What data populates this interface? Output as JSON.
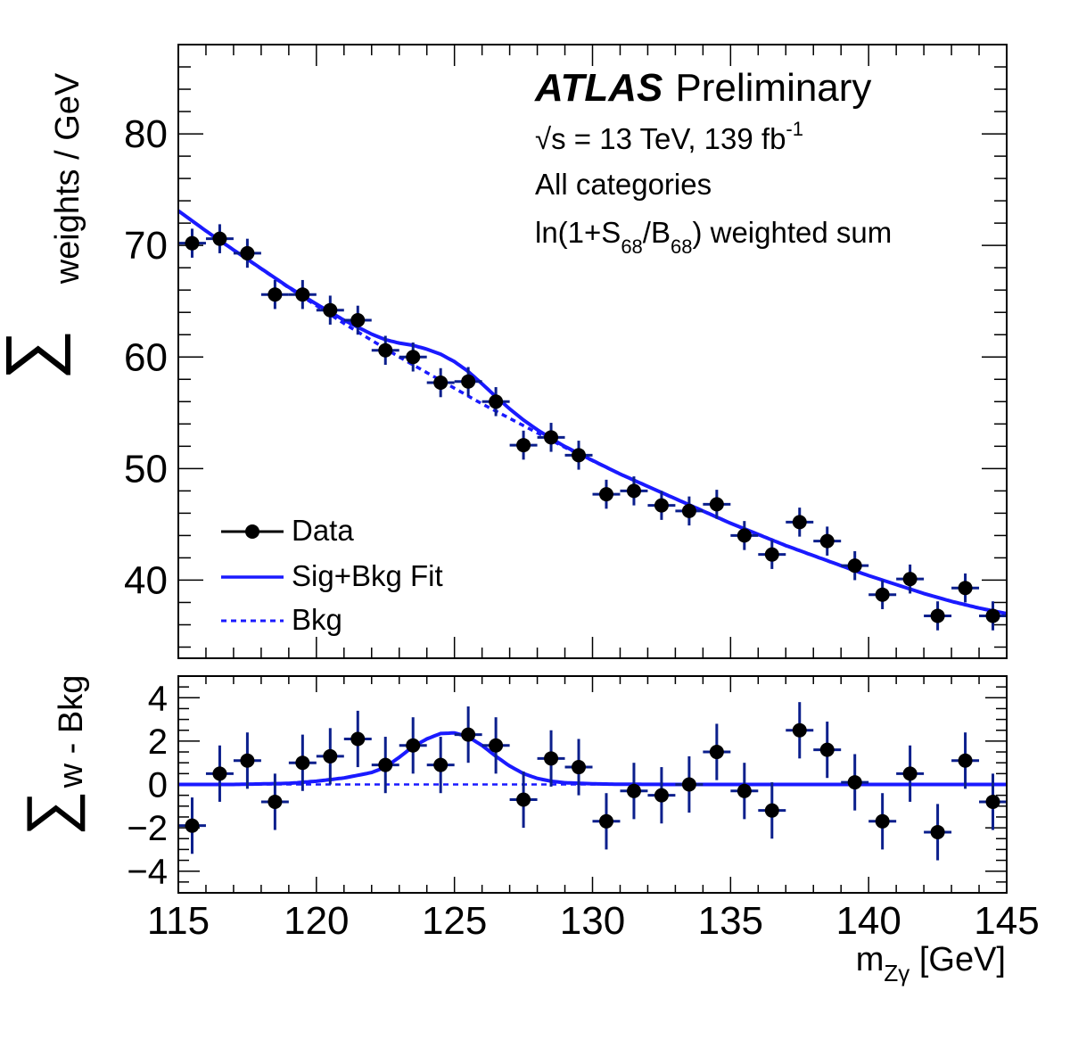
{
  "chart_data": [
    {
      "type": "scatter",
      "panel": "main",
      "experiment": "ATLAS",
      "status": "Preliminary",
      "energy_prefix": "√s = 13 TeV, 139 fb",
      "energy_sup": "-1",
      "category": "All categories",
      "weight_prefix": "ln(1+S",
      "weight_sub1": "68",
      "weight_mid": "/B",
      "weight_sub2": "68",
      "weight_suffix": ") weighted sum",
      "ylabel_sum": "∑",
      "ylabel": "weights / GeV",
      "xlim": [
        115,
        145
      ],
      "ylim": [
        33,
        88
      ],
      "yticks": [
        40,
        50,
        60,
        70,
        80
      ],
      "legend": [
        "Data",
        "Sig+Bkg Fit",
        "Bkg"
      ],
      "legend_position": "bottom-left",
      "bin_width": 1.0,
      "x": [
        115.5,
        116.5,
        117.5,
        118.5,
        119.5,
        120.5,
        121.5,
        122.5,
        123.5,
        124.5,
        125.5,
        126.5,
        127.5,
        128.5,
        129.5,
        130.5,
        131.5,
        132.5,
        133.5,
        134.5,
        135.5,
        136.5,
        137.5,
        138.5,
        139.5,
        140.5,
        141.5,
        142.5,
        143.5,
        144.5
      ],
      "y": [
        70.2,
        70.6,
        69.3,
        65.6,
        65.6,
        64.2,
        63.3,
        60.6,
        60.0,
        57.7,
        57.8,
        56.0,
        52.1,
        52.8,
        51.2,
        47.7,
        48.0,
        46.7,
        46.2,
        46.8,
        44.0,
        42.3,
        45.2,
        43.5,
        41.3,
        38.7,
        40.1,
        36.8,
        39.3,
        36.8
      ],
      "yerr": [
        1.3,
        1.3,
        1.3,
        1.3,
        1.3,
        1.3,
        1.3,
        1.3,
        1.3,
        1.3,
        1.3,
        1.3,
        1.3,
        1.3,
        1.3,
        1.3,
        1.3,
        1.3,
        1.3,
        1.3,
        1.3,
        1.3,
        1.3,
        1.3,
        1.3,
        1.3,
        1.3,
        1.3,
        1.3,
        1.3
      ],
      "bkg_curve": {
        "x": [
          115,
          116,
          117,
          118,
          119,
          120,
          121,
          122,
          123,
          124,
          125,
          126,
          127,
          128,
          129,
          130,
          131,
          132,
          133,
          134,
          135,
          136,
          137,
          138,
          139,
          140,
          141,
          142,
          143,
          144,
          145
        ],
        "y": [
          73.1,
          71.3,
          69.6,
          67.9,
          66.2,
          64.6,
          63.0,
          61.5,
          60.0,
          58.6,
          57.2,
          55.8,
          54.5,
          53.2,
          51.9,
          50.7,
          49.5,
          48.4,
          47.3,
          46.2,
          45.1,
          44.1,
          43.1,
          42.2,
          41.3,
          40.4,
          39.6,
          38.8,
          38.1,
          37.5,
          37.0
        ]
      },
      "sig_curve": {
        "x": [
          115,
          117,
          119,
          120,
          121,
          122,
          122.5,
          123,
          123.5,
          124,
          124.5,
          125,
          125.5,
          126,
          126.5,
          127,
          127.5,
          128,
          128.5,
          129,
          130,
          131,
          133,
          135,
          140,
          145
        ],
        "y": [
          0.0,
          0.0,
          0.05,
          0.15,
          0.3,
          0.55,
          0.8,
          1.25,
          1.75,
          2.1,
          2.35,
          2.38,
          2.2,
          1.8,
          1.3,
          0.85,
          0.5,
          0.28,
          0.15,
          0.08,
          0.03,
          0.01,
          0.0,
          0.0,
          0.0,
          0.0
        ]
      }
    },
    {
      "type": "scatter",
      "panel": "residual",
      "ylabel_sum": "∑",
      "ylabel": "w - Bkg",
      "xlabel_main": "m",
      "xlabel_sub": "Zγ",
      "xlabel_unit": " [GeV]",
      "xlim": [
        115,
        145
      ],
      "ylim": [
        -5,
        5
      ],
      "xticks": [
        115,
        120,
        125,
        130,
        135,
        140,
        145
      ],
      "yticks": [
        -4,
        -2,
        0,
        2,
        4
      ],
      "ytick_labels": [
        "−4",
        "−2",
        "0",
        "2",
        "4"
      ],
      "x": [
        115.5,
        116.5,
        117.5,
        118.5,
        119.5,
        120.5,
        121.5,
        122.5,
        123.5,
        124.5,
        125.5,
        126.5,
        127.5,
        128.5,
        129.5,
        130.5,
        131.5,
        132.5,
        133.5,
        134.5,
        135.5,
        136.5,
        137.5,
        138.5,
        139.5,
        140.5,
        141.5,
        142.5,
        143.5,
        144.5
      ],
      "y": [
        -1.9,
        0.5,
        1.1,
        -0.8,
        1.0,
        1.3,
        2.1,
        0.9,
        1.8,
        0.9,
        2.3,
        1.8,
        -0.7,
        1.2,
        0.8,
        -1.7,
        -0.3,
        -0.5,
        0.0,
        1.5,
        -0.3,
        -1.2,
        2.5,
        1.6,
        0.1,
        -1.7,
        0.5,
        -2.2,
        1.1,
        -0.8
      ],
      "yerr": [
        1.3,
        1.3,
        1.3,
        1.3,
        1.3,
        1.3,
        1.3,
        1.3,
        1.3,
        1.3,
        1.3,
        1.3,
        1.3,
        1.3,
        1.3,
        1.3,
        1.3,
        1.3,
        1.3,
        1.3,
        1.3,
        1.3,
        1.3,
        1.3,
        1.3,
        1.3,
        1.3,
        1.3,
        1.3,
        1.3
      ]
    }
  ],
  "colors": {
    "data": "#000000",
    "errorbar": "#0b1f8c",
    "fit": "#1a1aff",
    "bkg": "#1a1aff",
    "frame": "#000000"
  }
}
